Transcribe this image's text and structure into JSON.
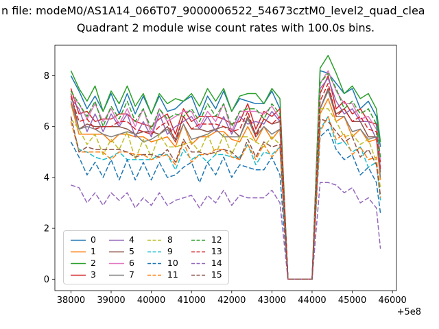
{
  "chart_data": {
    "type": "line",
    "suptitle": "n file: modeM0/AS1A14_066T07_9000006522_54673cztM0_level2_quad_clea",
    "title": "Quadrant 2 module wise count rates with 100.0s bins.",
    "xlabel": "",
    "ylabel": "",
    "x_offset_label": "+5e8",
    "xlim": [
      37600,
      46100
    ],
    "ylim": [
      -0.45,
      9.2
    ],
    "x_ticks": [
      38000,
      39000,
      40000,
      41000,
      42000,
      43000,
      44000,
      45000,
      46000
    ],
    "x_tick_labels": [
      "38000",
      "39000",
      "40000",
      "41000",
      "42000",
      "43000",
      "44000",
      "45000",
      "46000"
    ],
    "y_ticks": [
      0,
      2,
      4,
      6,
      8
    ],
    "grid": false,
    "legend_position": "lower-left",
    "legend_ncol": 4,
    "x": [
      38000,
      38200,
      38400,
      38600,
      38800,
      39000,
      39200,
      39400,
      39600,
      39800,
      40000,
      40200,
      40400,
      40600,
      40800,
      41000,
      41200,
      41400,
      41600,
      41800,
      42000,
      42200,
      42400,
      42600,
      42800,
      43000,
      43200,
      43400,
      43600,
      43800,
      44000,
      44200,
      44400,
      44600,
      44800,
      45000,
      45200,
      45400,
      45600,
      45700
    ],
    "series": [
      {
        "name": "0",
        "color": "#1f77b4",
        "dash": "solid",
        "values": [
          8.0,
          7.4,
          6.7,
          7.2,
          6.6,
          7.3,
          6.5,
          7.3,
          6.5,
          7.2,
          6.5,
          7.2,
          6.6,
          6.7,
          7.0,
          7.2,
          6.4,
          7.2,
          6.7,
          7.4,
          6.6,
          7.1,
          7.0,
          6.9,
          6.9,
          7.4,
          6.7,
          0,
          0,
          0,
          0,
          8.2,
          8.1,
          7.7,
          7.3,
          7.5,
          6.7,
          7.0,
          6.4,
          5.2
        ]
      },
      {
        "name": "1",
        "color": "#ff7f0e",
        "dash": "solid",
        "values": [
          6.9,
          5.7,
          5.7,
          5.7,
          5.7,
          5.4,
          5.7,
          5.7,
          5.6,
          5.6,
          5.4,
          5.5,
          5.6,
          5.2,
          6.1,
          5.3,
          5.6,
          5.6,
          5.8,
          5.8,
          5.5,
          5.4,
          6.0,
          5.4,
          6.0,
          5.5,
          5.9,
          0,
          0,
          0,
          0,
          6.5,
          7.1,
          6.2,
          6.4,
          5.6,
          5.9,
          5.4,
          5.5,
          3.9
        ]
      },
      {
        "name": "2",
        "color": "#2ca02c",
        "dash": "solid",
        "values": [
          8.2,
          7.5,
          7.0,
          7.6,
          6.6,
          7.4,
          6.9,
          7.6,
          6.8,
          7.3,
          6.5,
          7.3,
          6.9,
          7.1,
          7.0,
          7.3,
          6.8,
          7.5,
          7.0,
          7.5,
          6.6,
          7.2,
          7.3,
          7.3,
          6.9,
          7.5,
          7.1,
          0,
          0,
          0,
          0,
          8.3,
          8.8,
          8.1,
          7.3,
          7.6,
          7.1,
          7.3,
          6.7,
          5.4
        ]
      },
      {
        "name": "3",
        "color": "#d62728",
        "dash": "solid",
        "values": [
          7.5,
          6.5,
          6.6,
          6.2,
          6.3,
          6.3,
          6.5,
          6.5,
          6.2,
          6.1,
          6.0,
          6.3,
          6.5,
          5.7,
          6.7,
          6.2,
          6.4,
          6.4,
          6.4,
          6.3,
          6.1,
          6.2,
          6.9,
          5.9,
          6.6,
          6.4,
          6.7,
          0,
          0,
          0,
          0,
          7.3,
          8.0,
          6.7,
          7.0,
          6.5,
          6.7,
          6.2,
          6.1,
          4.6
        ]
      },
      {
        "name": "4",
        "color": "#9467bd",
        "dash": "solid",
        "values": [
          7.1,
          6.7,
          5.8,
          6.5,
          5.8,
          6.5,
          6.0,
          6.5,
          5.6,
          6.2,
          5.6,
          6.5,
          5.7,
          6.0,
          6.2,
          6.4,
          5.9,
          6.4,
          5.8,
          6.4,
          5.7,
          6.4,
          6.1,
          6.2,
          6.1,
          6.6,
          6.2,
          0,
          0,
          0,
          0,
          7.5,
          7.9,
          7.0,
          6.5,
          6.7,
          6.2,
          6.2,
          5.5,
          4.4
        ]
      },
      {
        "name": "5",
        "color": "#8c564b",
        "dash": "solid",
        "values": [
          7.3,
          5.9,
          6.1,
          6.0,
          6.0,
          6.0,
          6.0,
          5.9,
          5.7,
          5.8,
          5.8,
          5.7,
          6.0,
          5.5,
          6.4,
          5.9,
          5.9,
          5.8,
          5.9,
          6.0,
          5.9,
          5.6,
          6.4,
          5.7,
          6.3,
          6.1,
          6.2,
          0,
          0,
          0,
          0,
          6.7,
          7.5,
          6.5,
          6.7,
          6.2,
          6.2,
          5.6,
          5.6,
          4.2
        ]
      },
      {
        "name": "6",
        "color": "#e377c2",
        "dash": "solid",
        "values": [
          7.2,
          6.9,
          6.3,
          6.9,
          6.2,
          6.7,
          6.1,
          6.7,
          6.0,
          6.7,
          5.7,
          6.7,
          6.2,
          6.4,
          6.6,
          6.6,
          6.0,
          6.6,
          6.2,
          6.9,
          5.8,
          6.6,
          6.6,
          6.6,
          6.5,
          6.8,
          6.3,
          0,
          0,
          0,
          0,
          7.7,
          8.2,
          7.4,
          6.9,
          6.9,
          6.3,
          6.4,
          5.9,
          4.7
        ]
      },
      {
        "name": "7",
        "color": "#7f7f7f",
        "dash": "solid",
        "values": [
          7.0,
          5.9,
          6.0,
          5.9,
          5.7,
          5.6,
          5.7,
          5.8,
          5.7,
          5.4,
          5.5,
          5.7,
          5.9,
          5.4,
          6.1,
          5.5,
          5.6,
          5.7,
          5.9,
          5.6,
          5.6,
          5.6,
          6.3,
          5.6,
          6.0,
          5.7,
          5.9,
          0,
          0,
          0,
          0,
          6.7,
          7.4,
          6.4,
          6.4,
          5.8,
          5.9,
          5.5,
          5.6,
          4.0
        ]
      },
      {
        "name": "8",
        "color": "#bcbd22",
        "dash": "dashed",
        "values": [
          6.3,
          5.9,
          5.3,
          5.7,
          4.9,
          5.5,
          5.1,
          5.8,
          4.7,
          5.5,
          4.8,
          5.7,
          5.2,
          5.2,
          5.3,
          5.4,
          5.0,
          5.7,
          4.9,
          5.7,
          4.9,
          5.6,
          5.6,
          5.4,
          5.2,
          5.6,
          5.3,
          0,
          0,
          0,
          0,
          6.7,
          6.7,
          6.2,
          5.6,
          5.7,
          5.3,
          5.5,
          4.6,
          3.6
        ]
      },
      {
        "name": "9",
        "color": "#17becf",
        "dash": "dashed",
        "values": [
          6.2,
          5.1,
          5.0,
          4.8,
          4.7,
          4.8,
          5.0,
          4.7,
          4.7,
          4.7,
          4.7,
          4.9,
          4.9,
          4.3,
          5.1,
          4.7,
          4.9,
          4.6,
          4.9,
          4.9,
          4.8,
          4.8,
          5.3,
          4.5,
          5.0,
          4.9,
          5.2,
          0,
          0,
          0,
          0,
          5.9,
          6.4,
          5.3,
          5.4,
          5.0,
          5.2,
          4.4,
          4.6,
          3.1
        ]
      },
      {
        "name": "10",
        "color": "#1f77b4",
        "dash": "dashed",
        "values": [
          5.4,
          4.8,
          4.1,
          4.6,
          4.0,
          4.7,
          3.9,
          4.7,
          3.9,
          4.6,
          3.9,
          4.6,
          4.0,
          4.1,
          4.4,
          4.6,
          3.8,
          4.6,
          4.1,
          4.8,
          4.0,
          4.5,
          4.4,
          4.3,
          4.3,
          4.8,
          4.1,
          0,
          0,
          0,
          0,
          5.6,
          5.9,
          5.1,
          4.7,
          4.9,
          4.1,
          4.4,
          3.8,
          2.6
        ]
      },
      {
        "name": "11",
        "color": "#ff7f0e",
        "dash": "dashed",
        "values": [
          6.2,
          5.0,
          5.0,
          5.0,
          5.0,
          4.7,
          5.0,
          5.0,
          4.9,
          4.9,
          4.7,
          4.8,
          4.9,
          4.5,
          5.4,
          4.6,
          4.9,
          4.9,
          5.1,
          5.1,
          4.8,
          4.7,
          5.3,
          4.7,
          5.3,
          4.8,
          5.2,
          0,
          0,
          0,
          0,
          5.8,
          6.4,
          5.5,
          5.7,
          4.9,
          5.2,
          4.7,
          4.8,
          3.2
        ]
      },
      {
        "name": "12",
        "color": "#2ca02c",
        "dash": "dashed",
        "values": [
          7.4,
          6.9,
          6.4,
          7.0,
          6.0,
          6.8,
          6.3,
          7.0,
          6.2,
          6.7,
          5.9,
          6.7,
          6.3,
          6.5,
          6.4,
          6.7,
          6.2,
          6.9,
          6.4,
          6.9,
          6.0,
          6.6,
          6.7,
          6.7,
          6.3,
          6.9,
          6.5,
          0,
          0,
          0,
          0,
          7.7,
          8.1,
          7.5,
          6.7,
          7.0,
          6.5,
          6.7,
          6.1,
          4.8
        ]
      },
      {
        "name": "13",
        "color": "#d62728",
        "dash": "dashed",
        "values": [
          7.2,
          6.2,
          6.3,
          5.9,
          6.0,
          6.0,
          6.2,
          6.2,
          5.9,
          5.8,
          5.7,
          6.0,
          6.2,
          5.4,
          6.4,
          5.9,
          6.1,
          6.1,
          6.1,
          6.0,
          5.8,
          5.9,
          6.6,
          5.6,
          6.3,
          6.1,
          6.4,
          0,
          0,
          0,
          0,
          7.0,
          7.7,
          6.4,
          6.7,
          6.2,
          6.4,
          5.9,
          5.8,
          4.3
        ]
      },
      {
        "name": "14",
        "color": "#9467bd",
        "dash": "dashed",
        "values": [
          3.7,
          3.6,
          3.0,
          3.4,
          2.9,
          3.4,
          3.1,
          3.4,
          2.8,
          3.2,
          2.9,
          3.4,
          2.9,
          3.1,
          3.2,
          3.3,
          2.8,
          3.3,
          3.0,
          3.5,
          2.9,
          3.3,
          3.2,
          3.2,
          3.2,
          3.5,
          3.0,
          0,
          0,
          0,
          0,
          3.8,
          3.8,
          3.7,
          3.4,
          3.6,
          3.0,
          3.2,
          2.8,
          1.2
        ]
      },
      {
        "name": "15",
        "color": "#8c564b",
        "dash": "dashed",
        "values": [
          6.4,
          5.0,
          5.2,
          5.1,
          5.1,
          5.1,
          5.1,
          5.0,
          4.8,
          4.9,
          4.9,
          4.8,
          5.1,
          4.6,
          5.5,
          5.0,
          5.0,
          4.9,
          5.0,
          5.1,
          5.0,
          4.7,
          5.5,
          4.8,
          5.4,
          5.2,
          5.3,
          0,
          0,
          0,
          0,
          6.3,
          6.2,
          5.8,
          5.4,
          5.6,
          4.8,
          5.1,
          4.5,
          3.3
        ]
      }
    ]
  }
}
